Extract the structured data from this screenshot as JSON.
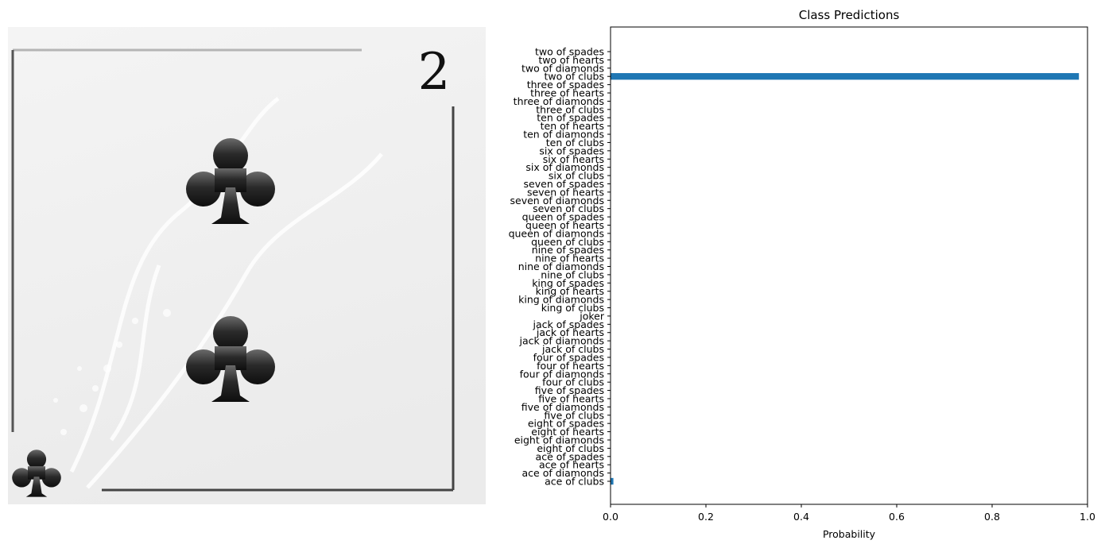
{
  "figure": {
    "image_panel": {
      "card": {
        "rank_label": "2",
        "suit_icon": "club-icon",
        "colors": {
          "background": "#f1f1f1",
          "pip": "#1c1c1c",
          "frame_line": "#555555"
        }
      }
    }
  },
  "chart_data": {
    "type": "bar",
    "orientation": "horizontal",
    "title": "Class Predictions",
    "xlabel": "Probability",
    "ylabel": "",
    "xlim": [
      0,
      1
    ],
    "xticks": [
      "0.0",
      "0.2",
      "0.4",
      "0.6",
      "0.8",
      "1.0"
    ],
    "grid": false,
    "bar_color": "#1f77b4",
    "categories": [
      "ace of clubs",
      "ace of diamonds",
      "ace of hearts",
      "ace of spades",
      "eight of clubs",
      "eight of diamonds",
      "eight of hearts",
      "eight of spades",
      "five of clubs",
      "five of diamonds",
      "five of hearts",
      "five of spades",
      "four of clubs",
      "four of diamonds",
      "four of hearts",
      "four of spades",
      "jack of clubs",
      "jack of diamonds",
      "jack of hearts",
      "jack of spades",
      "joker",
      "king of clubs",
      "king of diamonds",
      "king of hearts",
      "king of spades",
      "nine of clubs",
      "nine of diamonds",
      "nine of hearts",
      "nine of spades",
      "queen of clubs",
      "queen of diamonds",
      "queen of hearts",
      "queen of spades",
      "seven of clubs",
      "seven of diamonds",
      "seven of hearts",
      "seven of spades",
      "six of clubs",
      "six of diamonds",
      "six of hearts",
      "six of spades",
      "ten of clubs",
      "ten of diamonds",
      "ten of hearts",
      "ten of spades",
      "three of clubs",
      "three of diamonds",
      "three of hearts",
      "three of spades",
      "two of clubs",
      "two of diamonds",
      "two of hearts",
      "two of spades"
    ],
    "values": [
      0.006,
      0,
      0,
      0,
      0,
      0,
      0,
      0,
      0,
      0,
      0,
      0,
      0,
      0,
      0,
      0,
      0,
      0,
      0,
      0,
      0,
      0,
      0,
      0,
      0,
      0,
      0,
      0,
      0,
      0,
      0,
      0,
      0,
      0,
      0,
      0,
      0,
      0,
      0,
      0,
      0,
      0,
      0,
      0,
      0,
      0,
      0,
      0,
      0,
      0.982,
      0,
      0,
      0
    ]
  }
}
